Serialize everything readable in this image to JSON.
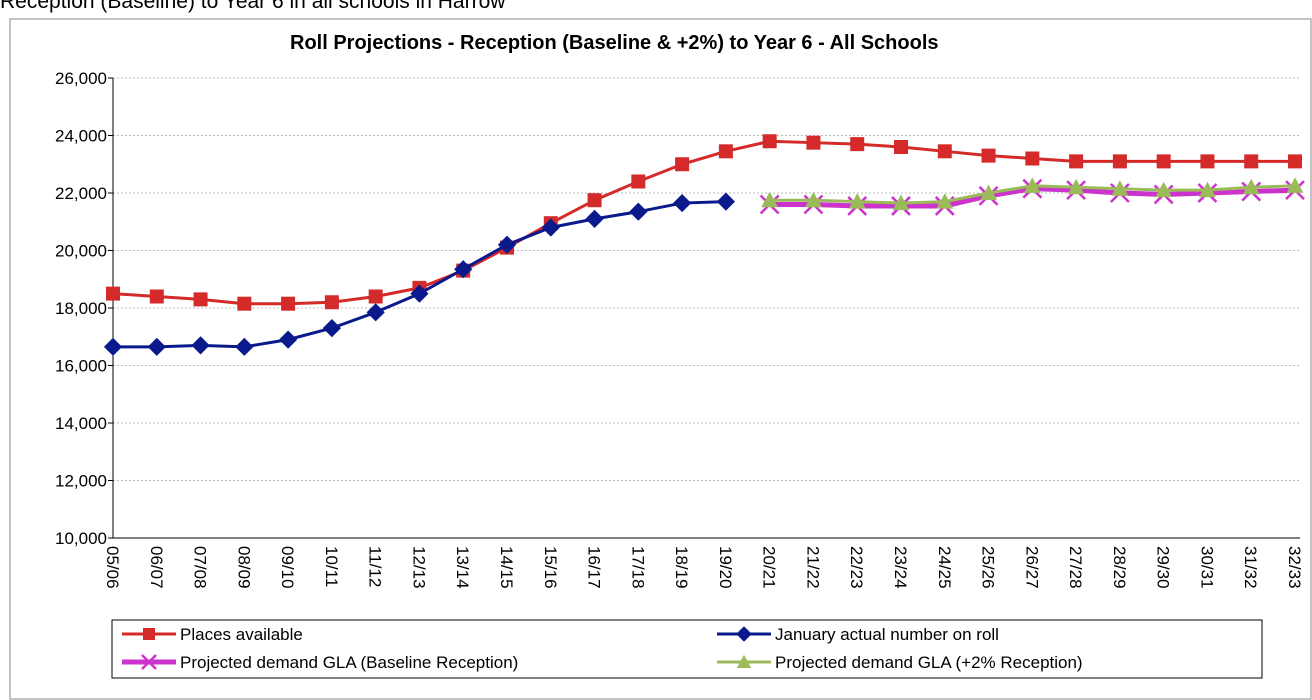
{
  "caption": "Reception (Baseline) to Year 6 in all schools in Harrow",
  "chart_data": {
    "type": "line",
    "title": "Roll Projections - Reception (Baseline & +2%)  to Year 6 - All Schools",
    "categories": [
      "05/06",
      "06/07",
      "07/08",
      "08/09",
      "09/10",
      "10/11",
      "11/12",
      "12/13",
      "13/14",
      "14/15",
      "15/16",
      "16/17",
      "17/18",
      "18/19",
      "19/20",
      "20/21",
      "21/22",
      "22/23",
      "23/24",
      "24/25",
      "25/26",
      "26/27",
      "27/28",
      "28/29",
      "29/30",
      "30/31",
      "31/32",
      "32/33"
    ],
    "series": [
      {
        "name": "Places available",
        "color": "#d42a2a",
        "marker": "square",
        "values": [
          18500,
          18400,
          18300,
          18150,
          18150,
          18200,
          18400,
          18700,
          19300,
          20100,
          20950,
          21750,
          22400,
          23000,
          23450,
          23800,
          23750,
          23700,
          23600,
          23450,
          23300,
          23200,
          23100,
          23100,
          23100,
          23100,
          23100,
          23100
        ]
      },
      {
        "name": "January actual number on roll",
        "color": "#0a1a8c",
        "marker": "diamond",
        "values": [
          16650,
          16650,
          16700,
          16650,
          16900,
          17300,
          17850,
          18500,
          19350,
          20200,
          20800,
          21100,
          21350,
          21650,
          21700,
          null,
          null,
          null,
          null,
          null,
          null,
          null,
          null,
          null,
          null,
          null,
          null,
          null
        ]
      },
      {
        "name": "Projected demand GLA (Baseline Reception)",
        "color": "#cc33cc",
        "marker": "x",
        "values": [
          null,
          null,
          null,
          null,
          null,
          null,
          null,
          null,
          null,
          null,
          null,
          null,
          null,
          null,
          null,
          21600,
          21600,
          21550,
          21550,
          21550,
          21900,
          22150,
          22100,
          22000,
          21950,
          22000,
          22050,
          22100
        ]
      },
      {
        "name": "Projected demand GLA (+2%  Reception)",
        "color": "#9bbb59",
        "marker": "triangle",
        "values": [
          null,
          null,
          null,
          null,
          null,
          null,
          null,
          null,
          null,
          null,
          null,
          null,
          null,
          null,
          null,
          21750,
          21750,
          21700,
          21650,
          21700,
          22000,
          22250,
          22200,
          22150,
          22100,
          22100,
          22200,
          22250
        ]
      }
    ],
    "ylim": [
      10000,
      26000
    ],
    "yticks": [
      {
        "value": 10000,
        "label": "10,000"
      },
      {
        "value": 12000,
        "label": "12,000"
      },
      {
        "value": 14000,
        "label": "14,000"
      },
      {
        "value": 16000,
        "label": "16,000"
      },
      {
        "value": 18000,
        "label": "18,000"
      },
      {
        "value": 20000,
        "label": "20,000"
      },
      {
        "value": 22000,
        "label": "22,000"
      },
      {
        "value": 24000,
        "label": "24,000"
      },
      {
        "value": 26000,
        "label": "26,000"
      }
    ],
    "grid": true,
    "legend": "bottom"
  }
}
